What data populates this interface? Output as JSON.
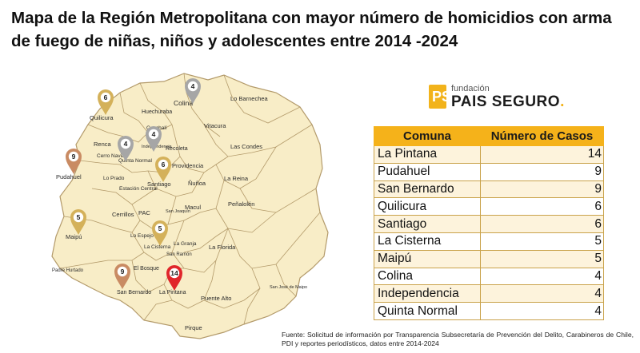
{
  "title": "Mapa de la Región Metropolitana con mayor número de homicidios con arma de fuego de niñas, niños y adolescentes entre 2014 -2024",
  "logo": {
    "small": "fundación",
    "big": "PAIS SEGURO",
    "mark": "PS"
  },
  "table": {
    "headers": [
      "Comuna",
      "Número de Casos"
    ],
    "rows": [
      {
        "comuna": "La Pintana",
        "casos": 14
      },
      {
        "comuna": "Pudahuel",
        "casos": 9
      },
      {
        "comuna": "San Bernardo",
        "casos": 9
      },
      {
        "comuna": "Quilicura",
        "casos": 6
      },
      {
        "comuna": "Santiago",
        "casos": 6
      },
      {
        "comuna": "La Cisterna",
        "casos": 5
      },
      {
        "comuna": "Maipú",
        "casos": 5
      },
      {
        "comuna": "Colina",
        "casos": 4
      },
      {
        "comuna": "Independencia",
        "casos": 4
      },
      {
        "comuna": "Quinta Normal",
        "casos": 4
      }
    ]
  },
  "map": {
    "labels": {
      "colina": "Colina",
      "lo_barnechea": "Lo Barnechea",
      "quilicura": "Quilicura",
      "huechuraba": "Huechuraba",
      "conchali": "Conchalí",
      "vitacura": "Vitacura",
      "renca": "Renca",
      "independencia": "Indepe ndencia",
      "recoleta": "Recoleta",
      "las_condes": "Las Condes",
      "cerro_navia": "Cerro Navia",
      "quinta_normal": "Quinta Normal",
      "providencia": "Providencia",
      "pudahuel": "Pudahuel",
      "lo_prado": "Lo Prado",
      "santiago": "Santiago",
      "nunoa": "Ñuñoa",
      "la_reina": "La Reina",
      "estacion_central": "Estación Central",
      "penalolen": "Peñalolén",
      "macul": "Macul",
      "cerrillos": "Cerrillos",
      "pac": "PAC",
      "san_joaquin": "San Joaquín",
      "lo_espejo": "Lo Espejo",
      "la_granja": "La Granja",
      "maipu": "Maipú",
      "la_cisterna": "La Cisterna",
      "la_florida": "La Florida",
      "san_ramon": "San Ramón",
      "padre_hurtado": "Padre Hurtado",
      "el_bosque": "El Bosque",
      "san_jose_de_maipo": "San José de Maipo",
      "san_bernardo": "San Bernardo",
      "la_pintana": "La Pintana",
      "puente_alto": "Puente Alto",
      "pirque": "Pirque"
    },
    "pins": [
      {
        "comuna": "Colina",
        "value": "4",
        "color": "#a6a6a6"
      },
      {
        "comuna": "Quilicura",
        "value": "6",
        "color": "#d4b15a"
      },
      {
        "comuna": "Independencia",
        "value": "4",
        "color": "#a6a6a6"
      },
      {
        "comuna": "Pudahuel",
        "value": "9",
        "color": "#c98b63"
      },
      {
        "comuna": "Quinta Normal",
        "value": "4",
        "color": "#a6a6a6"
      },
      {
        "comuna": "Santiago",
        "value": "6",
        "color": "#d4b15a"
      },
      {
        "comuna": "Maipú",
        "value": "5",
        "color": "#d4b15a"
      },
      {
        "comuna": "La Cisterna",
        "value": "5",
        "color": "#d4b15a"
      },
      {
        "comuna": "San Bernardo",
        "value": "9",
        "color": "#c98b63"
      },
      {
        "comuna": "La Pintana",
        "value": "14",
        "color": "#e0262a"
      }
    ],
    "fill_color": "#f8edc7",
    "border_color": "#b39a6a"
  },
  "source": "Fuente: Solicitud de información por Transparencia Subsecretaría de Prevención del Delito, Carabineros de Chile, PDI y reportes periodísticos, datos entre 2014-2024"
}
